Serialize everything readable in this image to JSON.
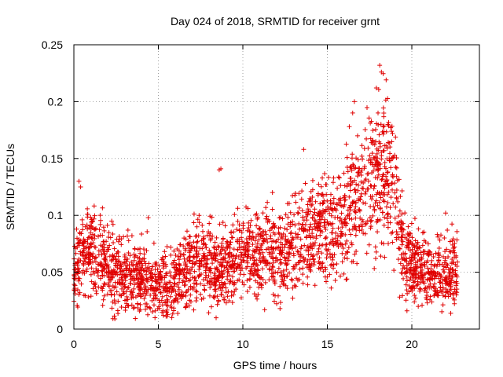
{
  "chart_data": {
    "type": "scatter",
    "title": "Day 024 of 2018, SRMTID for receiver grnt",
    "xlabel": "GPS time / hours",
    "ylabel": "SRMTID / TECUs",
    "xlim": [
      0,
      24.0
    ],
    "ylim": [
      0,
      0.25
    ],
    "x_ticks": [
      0,
      5,
      10,
      15,
      20
    ],
    "y_ticks": [
      0,
      0.05,
      0.1,
      0.15,
      0.2,
      0.25
    ],
    "x_tick_labels": [
      "0",
      "5",
      "10",
      "15",
      "20"
    ],
    "y_tick_labels": [
      "0",
      "0.05",
      "0.1",
      "0.15",
      "0.2",
      "0.25"
    ],
    "grid": true,
    "marker": "+",
    "series": [
      {
        "name": "SRMTID",
        "color": "#e00000",
        "x_start": 0.0,
        "x_step": 0.5,
        "mean_profile": [
          0.05,
          0.065,
          0.07,
          0.062,
          0.055,
          0.05,
          0.045,
          0.045,
          0.046,
          0.042,
          0.04,
          0.04,
          0.04,
          0.05,
          0.055,
          0.06,
          0.06,
          0.05,
          0.055,
          0.06,
          0.065,
          0.065,
          0.06,
          0.07,
          0.07,
          0.065,
          0.075,
          0.08,
          0.08,
          0.09,
          0.09,
          0.08,
          0.095,
          0.11,
          0.115,
          0.13,
          0.13,
          0.14,
          0.13,
          0.06,
          0.055,
          0.05,
          0.05,
          0.048,
          0.045,
          0.05,
          0.052
        ],
        "highlighted_points": [
          {
            "x": 0.3,
            "y": 0.13
          },
          {
            "x": 0.4,
            "y": 0.125
          },
          {
            "x": 4.4,
            "y": 0.098
          },
          {
            "x": 8.6,
            "y": 0.14
          },
          {
            "x": 8.7,
            "y": 0.141
          },
          {
            "x": 13.6,
            "y": 0.158
          },
          {
            "x": 16.6,
            "y": 0.2
          },
          {
            "x": 16.5,
            "y": 0.19
          },
          {
            "x": 16.3,
            "y": 0.178
          },
          {
            "x": 18.1,
            "y": 0.232
          },
          {
            "x": 18.2,
            "y": 0.226
          },
          {
            "x": 17.9,
            "y": 0.212
          },
          {
            "x": 18.3,
            "y": 0.178
          },
          {
            "x": 18.0,
            "y": 0.19
          },
          {
            "x": 22.0,
            "y": 0.102
          },
          {
            "x": 22.1,
            "y": 0.087
          },
          {
            "x": 19.1,
            "y": 0.079
          },
          {
            "x": 5.3,
            "y": 0.012
          },
          {
            "x": 12.2,
            "y": 0.018
          },
          {
            "x": 4.8,
            "y": 0.01
          }
        ],
        "x_range": [
          0.0,
          22.7
        ],
        "approx_point_count": 2700
      }
    ]
  }
}
